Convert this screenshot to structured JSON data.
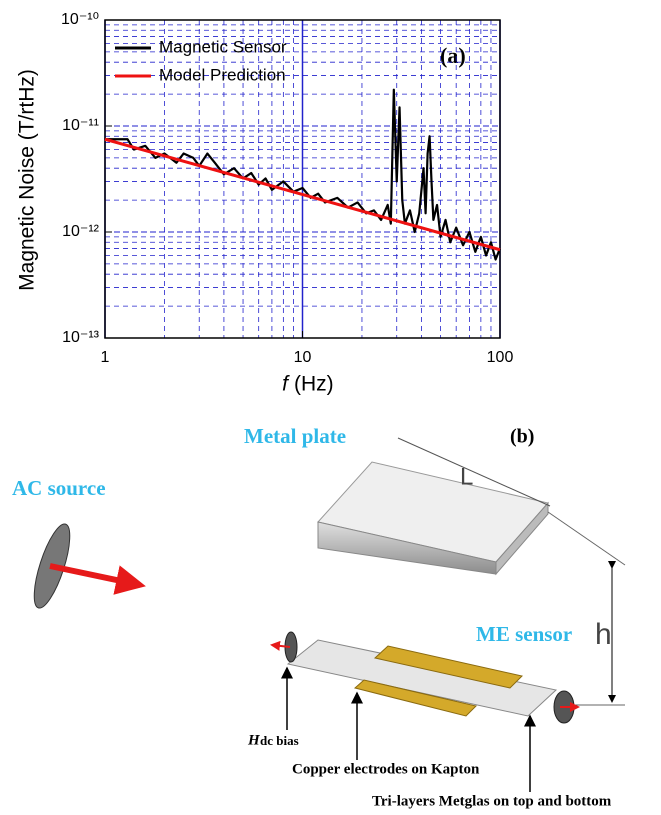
{
  "chart_data": {
    "type": "line",
    "log_x": true,
    "log_y": true,
    "y_label": "Magnetic Noise (T/rtHz)",
    "x_label_symbol": "f",
    "x_label": "(Hz)",
    "annotation": "(a)",
    "xlim": [
      1,
      100
    ],
    "xticks": [
      1,
      10,
      100
    ],
    "ylim": [
      1e-13,
      1e-10
    ],
    "yticks": [
      {
        "value": 1e-13,
        "label": "10⁻¹³"
      },
      {
        "value": 1e-12,
        "label": "10⁻¹²"
      },
      {
        "value": 1e-11,
        "label": "10⁻¹¹"
      },
      {
        "value": 1e-10,
        "label": "10⁻¹⁰"
      }
    ],
    "grid": true,
    "minor_grid": true,
    "grid_color": "#2222cc",
    "legend": "upper-left",
    "series": [
      {
        "name": "Magnetic Sensor",
        "color": "#000000",
        "x": [
          1,
          1.3,
          1.4,
          1.6,
          1.8,
          2,
          2.3,
          2.5,
          2.8,
          3,
          3.3,
          3.6,
          4,
          4.5,
          5,
          5.5,
          6,
          6.5,
          7,
          8,
          9,
          10,
          11,
          12,
          13,
          15,
          17,
          19,
          21,
          23,
          25,
          27,
          28,
          29,
          30,
          31,
          32,
          33,
          35,
          37,
          39,
          41,
          42,
          43,
          44,
          45,
          46,
          48,
          50,
          53,
          56,
          60,
          65,
          70,
          75,
          80,
          85,
          90,
          95,
          100
        ],
        "values": [
          7.5e-12,
          7.5e-12,
          6e-12,
          6.5e-12,
          5e-12,
          5.5e-12,
          4.5e-12,
          5.5e-12,
          5e-12,
          4.2e-12,
          5.5e-12,
          4.5e-12,
          3.5e-12,
          4e-12,
          3.2e-12,
          3.6e-12,
          2.8e-12,
          3.2e-12,
          2.5e-12,
          3e-12,
          2.4e-12,
          2.6e-12,
          2.1e-12,
          2.3e-12,
          1.9e-12,
          2.1e-12,
          1.7e-12,
          1.9e-12,
          1.5e-12,
          1.6e-12,
          1.3e-12,
          1.8e-12,
          1.2e-12,
          2.2e-11,
          3e-12,
          1.5e-11,
          2e-12,
          1.2e-12,
          1.6e-12,
          1e-12,
          1.5e-12,
          4e-12,
          1.5e-12,
          5.5e-12,
          8e-12,
          3e-12,
          1.3e-12,
          1.8e-12,
          9e-13,
          1.3e-12,
          8e-13,
          1.1e-12,
          7.5e-13,
          1e-12,
          6.5e-13,
          9e-13,
          6e-13,
          8e-13,
          5.5e-13,
          7e-13
        ]
      },
      {
        "name": "Model Prediction",
        "color": "#ee1111",
        "x": [
          1,
          100
        ],
        "values": [
          7.5e-12,
          6.8e-13
        ]
      }
    ]
  },
  "diagram": {
    "label": "(b)",
    "metal_plate": "Metal plate",
    "ac_source": "AC source",
    "length": "L",
    "height": "h",
    "me_sensor": "ME sensor",
    "bias_symbol": "H",
    "bias": "dc bias",
    "electrodes": "Copper electrodes on Kapton",
    "metglas": "Tri-layers Metglas on top and bottom"
  }
}
